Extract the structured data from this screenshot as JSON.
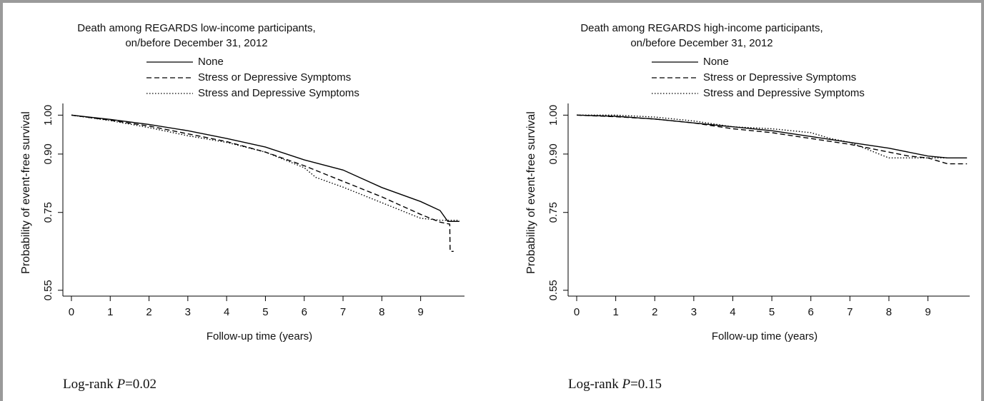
{
  "chart_data": [
    {
      "type": "line",
      "title": "Death among REGARDS low-income participants,",
      "subtitle": "on/before  December 31, 2012",
      "x_label": "Follow-up time (years)",
      "y_label": "Probability of event-free survival",
      "annotation_parts": [
        "Log-rank ",
        "P",
        "=0.02"
      ],
      "xlim": [
        -0.22,
        10.13
      ],
      "xticks": [
        0,
        1,
        2,
        3,
        4,
        5,
        6,
        7,
        8,
        9
      ],
      "ylim": [
        0.535,
        1.03
      ],
      "yticks": [
        {
          "value": 1,
          "label": "1.00"
        },
        {
          "value": 0.9,
          "label": "0.90"
        },
        0.75,
        0.55
      ],
      "series": [
        {
          "name": "None",
          "color": "#000000",
          "style": "solid",
          "x": [
            0,
            1,
            2,
            3,
            4,
            5,
            6,
            7,
            8,
            9,
            9.5,
            9.7,
            10.0
          ],
          "values": [
            1.0,
            0.989,
            0.976,
            0.96,
            0.94,
            0.918,
            0.885,
            0.859,
            0.814,
            0.778,
            0.755,
            0.727,
            0.727
          ]
        },
        {
          "name": "Stress or Depressive Symptoms",
          "color": "#000000",
          "style": "dashed",
          "x": [
            0,
            1,
            2,
            3,
            4,
            5,
            6,
            7,
            8,
            9,
            9.5,
            9.75,
            9.76,
            9.85
          ],
          "values": [
            1.0,
            0.987,
            0.972,
            0.952,
            0.932,
            0.905,
            0.87,
            0.83,
            0.79,
            0.745,
            0.725,
            0.72,
            0.65,
            0.65
          ]
        },
        {
          "name": "Stress and Depressive Symptoms",
          "color": "#000000",
          "style": "dotted",
          "x": [
            0,
            1,
            2,
            3,
            4,
            5,
            6,
            6.3,
            7,
            8,
            9,
            9.5,
            10.0
          ],
          "values": [
            1.0,
            0.986,
            0.968,
            0.947,
            0.93,
            0.905,
            0.865,
            0.84,
            0.815,
            0.775,
            0.735,
            0.73,
            0.73
          ]
        }
      ]
    },
    {
      "type": "line",
      "title": "Death among REGARDS high-income participants,",
      "subtitle": "on/before  December 31, 2012",
      "x_label": "Follow-up time (years)",
      "y_label": "Probability of event-free survival",
      "annotation_parts": [
        "Log-rank ",
        "P",
        "=0.15"
      ],
      "xlim": [
        -0.22,
        10.07
      ],
      "xticks": [
        0,
        1,
        2,
        3,
        4,
        5,
        6,
        7,
        8,
        9
      ],
      "ylim": [
        0.535,
        1.03
      ],
      "yticks": [
        {
          "value": 1,
          "label": "1.00"
        },
        {
          "value": 0.9,
          "label": "0.90"
        },
        0.75,
        0.55
      ],
      "series": [
        {
          "name": "None",
          "color": "#000000",
          "style": "solid",
          "x": [
            0,
            1,
            2,
            3,
            4,
            5,
            6,
            7,
            8,
            9,
            9.5,
            10.0
          ],
          "values": [
            1.0,
            0.997,
            0.99,
            0.98,
            0.97,
            0.96,
            0.945,
            0.93,
            0.915,
            0.895,
            0.89,
            0.89
          ]
        },
        {
          "name": "Stress or Depressive Symptoms",
          "color": "#000000",
          "style": "dashed",
          "x": [
            0,
            1,
            2,
            3,
            4,
            5,
            6,
            7,
            8,
            8.5,
            9,
            9.5,
            10.0
          ],
          "values": [
            1.0,
            0.996,
            0.99,
            0.98,
            0.965,
            0.955,
            0.94,
            0.925,
            0.905,
            0.895,
            0.89,
            0.875,
            0.875
          ]
        },
        {
          "name": "Stress and Depressive Symptoms",
          "color": "#000000",
          "style": "dotted",
          "x": [
            0,
            1,
            2,
            3,
            4,
            5,
            6,
            6.5,
            7,
            8,
            9,
            9.5
          ],
          "values": [
            1.0,
            1.0,
            0.995,
            0.985,
            0.97,
            0.965,
            0.955,
            0.94,
            0.93,
            0.89,
            0.89,
            0.89
          ]
        }
      ]
    }
  ]
}
